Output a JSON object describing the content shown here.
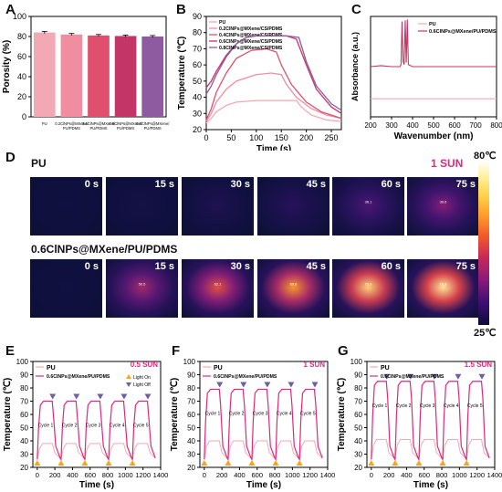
{
  "labels": {
    "A": "A",
    "B": "B",
    "C": "C",
    "D": "D",
    "E": "E",
    "F": "F",
    "G": "G"
  },
  "colors": {
    "pu": "#f2a9b3",
    "c02": "#f08da0",
    "c04": "#e0506e",
    "c06": "#c43567",
    "c08": "#8e5aa0",
    "pink": "#e0287a",
    "light_on": "#f4a623",
    "light_off": "#6d5fa0"
  },
  "thermal": {
    "row1_label": "PU",
    "row2_label": "0.6ClNPs@MXene/PU/PDMS",
    "sun_label": "1 SUN",
    "times": [
      "0 s",
      "15 s",
      "30 s",
      "45 s",
      "60 s",
      "75 s"
    ],
    "row1_heat": [
      0.02,
      0.04,
      0.08,
      0.12,
      0.25,
      0.38
    ],
    "row2_heat": [
      0.02,
      0.45,
      0.62,
      0.78,
      0.92,
      0.97
    ],
    "row1_spot": [
      "",
      "",
      "",
      "",
      "36.1",
      "39.6"
    ],
    "row2_spot": [
      "",
      "50.5",
      "62.1",
      "69.6",
      "75.0",
      "78.6"
    ],
    "colorbar_max": "80℃",
    "colorbar_min": "25℃"
  },
  "chart_data": [
    {
      "id": "A",
      "type": "bar",
      "categories": [
        "PU",
        "0.2ClNPs@MXene/PU/PDMS",
        "0.4ClNPs@MXene/PU/PDMS",
        "0.6ClNPs@MXene/PU/PDMS",
        "0.8ClNPs@MXene/PU/PDMS"
      ],
      "values": [
        84,
        82,
        81,
        80.5,
        80
      ],
      "errors": [
        1,
        1,
        1,
        1,
        1
      ],
      "ylabel": "Porosity (%)",
      "ylim": [
        0,
        100
      ],
      "yticks": [
        "0",
        "20",
        "40",
        "60",
        "80",
        "100"
      ]
    },
    {
      "id": "B",
      "type": "line",
      "xlabel": "Time (s)",
      "ylabel": "Temperature (℃)",
      "xlim": [
        0,
        270
      ],
      "ylim": [
        20,
        90
      ],
      "xticks": [
        "0",
        "50",
        "100",
        "150",
        "200",
        "250"
      ],
      "yticks": [
        "20",
        "30",
        "40",
        "50",
        "60",
        "70",
        "80",
        "90"
      ],
      "legend": "top-left",
      "series": [
        {
          "name": "PU",
          "x": [
            0,
            10,
            20,
            40,
            60,
            100,
            150,
            180,
            190,
            210,
            240,
            270
          ],
          "y": [
            24,
            27,
            31,
            35,
            37,
            38,
            38,
            38,
            34,
            29,
            26,
            25
          ]
        },
        {
          "name": "0.2ClNPs@MXene/CS/PDMS",
          "x": [
            0,
            10,
            20,
            40,
            60,
            100,
            130,
            150,
            160,
            180,
            210,
            240,
            270
          ],
          "y": [
            25,
            30,
            37,
            45,
            50,
            54,
            55,
            54,
            48,
            40,
            33,
            29,
            27
          ]
        },
        {
          "name": "0.4ClNPs@MXene/CS/PDMS",
          "x": [
            0,
            10,
            20,
            40,
            60,
            90,
            120,
            140,
            150,
            170,
            200,
            230,
            270
          ],
          "y": [
            26,
            33,
            43,
            55,
            64,
            69,
            70,
            68,
            60,
            48,
            37,
            31,
            27
          ]
        },
        {
          "name": "0.6ClNPs@MXene/CS/PDMS",
          "x": [
            0,
            10,
            20,
            40,
            60,
            80,
            100,
            160,
            180,
            200,
            220,
            250,
            270
          ],
          "y": [
            46,
            50,
            56,
            66,
            73,
            77,
            78,
            78,
            76,
            60,
            45,
            34,
            30
          ]
        },
        {
          "name": "0.8ClNPs@MXene/CS/PDMS",
          "x": [
            0,
            10,
            20,
            40,
            60,
            80,
            100,
            160,
            185,
            200,
            220,
            250,
            270
          ],
          "y": [
            42,
            47,
            54,
            65,
            73,
            77,
            78,
            78,
            77,
            62,
            47,
            36,
            32
          ]
        }
      ]
    },
    {
      "id": "C",
      "type": "line",
      "xlabel": "Wavenumber (nm)",
      "ylabel": "Absorbance (a.u.)",
      "xlim": [
        200,
        800
      ],
      "xticks": [
        "200",
        "300",
        "400",
        "500",
        "600",
        "700",
        "800"
      ],
      "legend": "top-right",
      "series": [
        {
          "name": "PU",
          "x": [
            200,
            300,
            340,
            360,
            365,
            370,
            380,
            400,
            500,
            600,
            700,
            800
          ],
          "y": [
            0.18,
            0.18,
            0.18,
            0.18,
            0.18,
            0.18,
            0.18,
            0.18,
            0.18,
            0.18,
            0.18,
            0.18
          ]
        },
        {
          "name": "0.6ClNPs@MXene/PU/PDMS",
          "x": [
            200,
            250,
            300,
            340,
            345,
            350,
            355,
            360,
            365,
            370,
            375,
            380,
            400,
            500,
            600,
            700,
            800
          ],
          "y": [
            0.5,
            0.51,
            0.5,
            0.5,
            0.52,
            0.95,
            0.55,
            0.52,
            0.96,
            0.54,
            0.97,
            0.52,
            0.5,
            0.5,
            0.5,
            0.5,
            0.5
          ]
        }
      ]
    },
    {
      "id": "E",
      "type": "line",
      "sun": "0.5 SUN",
      "xlabel": "Time (s)",
      "ylabel": "Temperature (℃)",
      "xlim": [
        -50,
        1400
      ],
      "ylim": [
        20,
        100
      ],
      "xticks": [
        "0",
        "200",
        "400",
        "600",
        "800",
        "1000",
        "1200",
        "1400"
      ],
      "yticks": [
        "20",
        "30",
        "40",
        "50",
        "60",
        "70",
        "80",
        "90",
        "100"
      ],
      "legend_series": [
        "PU",
        "0.6ClNPs@MXene/PU/PDMS"
      ],
      "legend_markers": [
        "Light On",
        "Light Off"
      ],
      "cycle_labels": [
        "Cycle 1",
        "Cycle 2",
        "Cycle 3",
        "Cycle 4",
        "Cycle 5"
      ],
      "light_on_x": [
        0,
        270,
        540,
        810,
        1080
      ],
      "peak": 70,
      "pu_peak": 38,
      "base": 26
    },
    {
      "id": "F",
      "type": "line",
      "sun": "1 SUN",
      "xlabel": "Time (s)",
      "ylabel": "Temperature (℃)",
      "xlim": [
        -50,
        1400
      ],
      "ylim": [
        20,
        100
      ],
      "xticks": [
        "0",
        "200",
        "400",
        "600",
        "800",
        "1000",
        "1200",
        "1400"
      ],
      "yticks": [
        "20",
        "30",
        "40",
        "50",
        "60",
        "70",
        "80",
        "90",
        "100"
      ],
      "legend_series": [
        "PU",
        "0.6ClNPs@MXene/PU/PDMS"
      ],
      "cycle_labels": [
        "Cycle 1",
        "Cycle 2",
        "Cycle 3",
        "Cycle 4",
        "Cycle 5"
      ],
      "light_on_x": [
        0,
        270,
        540,
        810,
        1080
      ],
      "peak": 79,
      "pu_peak": 40,
      "base": 26
    },
    {
      "id": "G",
      "type": "line",
      "sun": "1.5 SUN",
      "xlabel": "Time (s)",
      "ylabel": "Temperature (℃)",
      "xlim": [
        -50,
        1400
      ],
      "ylim": [
        20,
        100
      ],
      "xticks": [
        "0",
        "200",
        "400",
        "600",
        "800",
        "1000",
        "1200",
        "1400"
      ],
      "yticks": [
        "20",
        "30",
        "40",
        "50",
        "60",
        "70",
        "80",
        "90",
        "100"
      ],
      "legend_series": [
        "PU",
        "0.6ClNPs@MXene/PU/PDMS"
      ],
      "cycle_labels": [
        "Cycle 1",
        "Cycle 2",
        "Cycle 3",
        "Cycle 4",
        "Cycle 5"
      ],
      "light_on_x": [
        0,
        270,
        540,
        810,
        1080
      ],
      "peak": 85,
      "pu_peak": 41,
      "base": 26
    }
  ]
}
